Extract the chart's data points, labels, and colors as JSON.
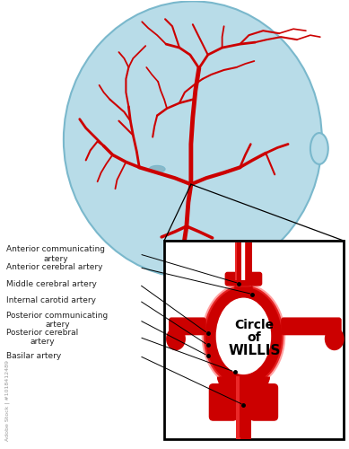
{
  "background_color": "#ffffff",
  "head_color": "#b8dce8",
  "head_outline_color": "#7ab8cc",
  "artery_color": "#cc0000",
  "artery_highlight": "#ff4444",
  "artery_dark": "#8b0000",
  "box_color": "#000000",
  "text_color": "#222222",
  "labels": [
    "Anterior communicating\nartery",
    "Anterior cerebral artery",
    "Middle cerebral artery",
    "Internal carotid artery",
    "Posterior communicating\nartery",
    "Posterior cerebral\nartery",
    "Basilar artery"
  ],
  "willis_lines": [
    "Circle",
    "of",
    "WILLIS"
  ],
  "watermark_text": "Adobe Stock | #1018412489",
  "figsize": [
    3.89,
    5.0
  ],
  "dpi": 100
}
